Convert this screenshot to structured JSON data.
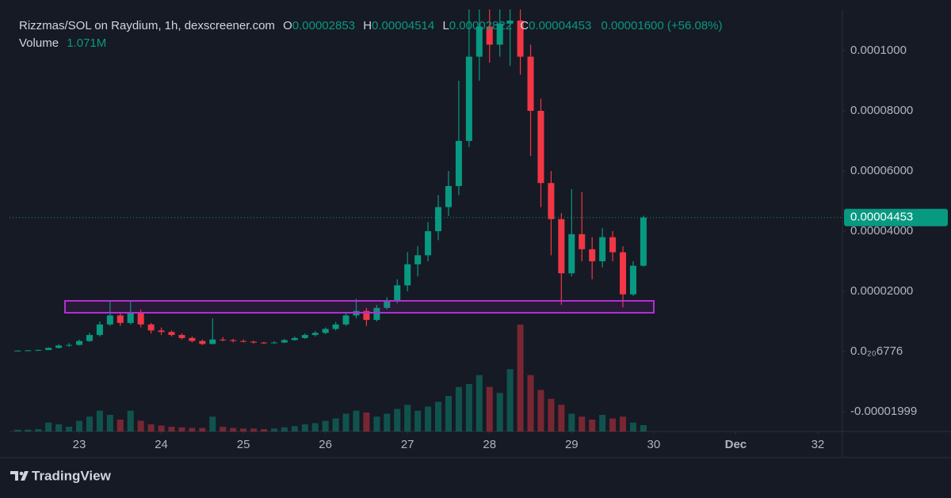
{
  "chart_data": {
    "type": "candlestick",
    "title": "Rizzmas/SOL on Raydium, 1h, dexscreener.com",
    "ohlc_labels": [
      "O",
      "H",
      "L",
      "C"
    ],
    "change_label": "0.00001600 (+56.08%)",
    "volume_title": "Volume",
    "volume_label": "1.071M",
    "up_color": "#089981",
    "down_color": "#f23645",
    "x": [
      22.25,
      22.375,
      22.5,
      22.625,
      22.75,
      22.875,
      23,
      23.125,
      23.25,
      23.375,
      23.5,
      23.625,
      23.75,
      23.875,
      24,
      24.125,
      24.25,
      24.375,
      24.5,
      24.625,
      24.75,
      24.875,
      25,
      25.125,
      25.25,
      25.375,
      25.5,
      25.625,
      25.75,
      25.875,
      26,
      26.125,
      26.25,
      26.375,
      26.5,
      26.625,
      26.75,
      26.875,
      27,
      27.125,
      27.25,
      27.375,
      27.5,
      27.625,
      27.75,
      27.875,
      28,
      28.125,
      28.25,
      28.375,
      28.5,
      28.625,
      28.75,
      28.875,
      29,
      29.125,
      29.25,
      29.375,
      29.5,
      29.625,
      29.75,
      29.875
    ],
    "open": [
      2e-07,
      3e-07,
      4e-07,
      5e-07,
      1.2e-06,
      2e-06,
      2.2e-06,
      3.5e-06,
      5.5e-06,
      9e-06,
      1.2e-05,
      9.5e-06,
      1.3e-05,
      9e-06,
      7e-06,
      6.5e-06,
      5.5e-06,
      4.5e-06,
      3.5e-06,
      2.5e-06,
      4e-06,
      3.8e-06,
      3.5e-06,
      3.3e-06,
      3e-06,
      2.8e-06,
      3e-06,
      3.8e-06,
      4.5e-06,
      5.5e-06,
      6.2e-06,
      7.5e-06,
      9e-06,
      1.2e-05,
      1.35e-05,
      1.05e-05,
      1.45e-05,
      1.7e-05,
      2.2e-05,
      2.9e-05,
      3.2e-05,
      4e-05,
      4.8e-05,
      5.5e-05,
      7e-05,
      9.8e-05,
      0.000108,
      0.000102,
      0.000109,
      0.00011,
      9.8e-05,
      8e-05,
      5.6e-05,
      4.4e-05,
      2.6e-05,
      3.9e-05,
      3.4e-05,
      3e-05,
      3.8e-05,
      3.3e-05,
      1.9e-05,
      2.853e-05
    ],
    "high": [
      4e-07,
      5e-07,
      7e-07,
      1.4e-06,
      2.4e-06,
      2.8e-06,
      4e-06,
      6.2e-06,
      1e-05,
      1.68e-05,
      1.3e-05,
      1.68e-05,
      1.4e-05,
      9.5e-06,
      8e-06,
      7e-06,
      6e-06,
      5e-06,
      4e-06,
      1.1e-05,
      4.8e-06,
      4.2e-06,
      4e-06,
      3.6e-06,
      3.2e-06,
      3.4e-06,
      4.2e-06,
      5e-06,
      6e-06,
      6.8e-06,
      8e-06,
      9.8e-06,
      1.3e-05,
      1.75e-05,
      1.45e-05,
      1.55e-05,
      1.8e-05,
      2.4e-05,
      3.3e-05,
      3.5e-05,
      4.3e-05,
      5.2e-05,
      6e-05,
      9e-05,
      0.000114,
      0.000114,
      0.000114,
      0.000114,
      0.000114,
      0.000114,
      0.000102,
      8.4e-05,
      6e-05,
      4.6e-05,
      5.4e-05,
      5.3e-05,
      3.8e-05,
      4.1e-05,
      4e-05,
      3.5e-05,
      3e-05,
      4.514e-05
    ],
    "low": [
      2e-07,
      3e-07,
      4e-07,
      5e-07,
      1e-06,
      1.6e-06,
      2e-06,
      3.2e-06,
      5e-06,
      8.5e-06,
      8.5e-06,
      9e-06,
      8e-06,
      6e-06,
      5.5e-06,
      5e-06,
      4e-06,
      3e-06,
      2.2e-06,
      2.4e-06,
      3.4e-06,
      3e-06,
      3e-06,
      2.6e-06,
      2.5e-06,
      2.6e-06,
      2.8e-06,
      3.6e-06,
      4.2e-06,
      5e-06,
      5.8e-06,
      7e-06,
      8.5e-06,
      1.1e-05,
      8.5e-06,
      1e-05,
      1.4e-05,
      1.6e-05,
      2e-05,
      2.5e-05,
      3e-05,
      3.7e-05,
      4.5e-05,
      5.2e-05,
      6.8e-05,
      9e-05,
      9.6e-05,
      9.8e-05,
      9.5e-05,
      9.2e-05,
      6.5e-05,
      4.8e-05,
      3.2e-05,
      1.55e-05,
      2.5e-05,
      3e-05,
      2.4e-05,
      2.8e-05,
      3e-05,
      1.47e-05,
      1.85e-05,
      2.822e-05
    ],
    "close": [
      3e-07,
      4e-07,
      5e-07,
      1.2e-06,
      2e-06,
      2.2e-06,
      3.5e-06,
      5.5e-06,
      9e-06,
      1.2e-05,
      9.5e-06,
      1.3e-05,
      9e-06,
      7e-06,
      6.5e-06,
      5.5e-06,
      4.5e-06,
      3.5e-06,
      2.5e-06,
      4e-06,
      3.8e-06,
      3.5e-06,
      3.3e-06,
      3e-06,
      2.8e-06,
      3e-06,
      3.8e-06,
      4.5e-06,
      5.5e-06,
      6.2e-06,
      7.5e-06,
      9e-06,
      1.2e-05,
      1.35e-05,
      1.05e-05,
      1.45e-05,
      1.7e-05,
      2.2e-05,
      2.9e-05,
      3.2e-05,
      4e-05,
      4.8e-05,
      5.5e-05,
      7e-05,
      9.8e-05,
      0.000108,
      0.000102,
      0.000109,
      0.00011,
      9.8e-05,
      8e-05,
      5.6e-05,
      4.4e-05,
      2.6e-05,
      3.9e-05,
      3.4e-05,
      3e-05,
      3.8e-05,
      3.3e-05,
      1.9e-05,
      2.85e-05,
      4.453e-05
    ],
    "volume": [
      300000,
      300000,
      400000,
      1500000,
      1200000,
      800000,
      1800000,
      2500000,
      3500000,
      2800000,
      2000000,
      3500000,
      1800000,
      1200000,
      1000000,
      800000,
      700000,
      600000,
      600000,
      2500000,
      800000,
      600000,
      500000,
      500000,
      400000,
      500000,
      700000,
      900000,
      1200000,
      1400000,
      1800000,
      2200000,
      3000000,
      3500000,
      3200000,
      2500000,
      3000000,
      3800000,
      4500000,
      3500000,
      4200000,
      5000000,
      6000000,
      7500000,
      8000000,
      9500000,
      7500000,
      6500000,
      10500000,
      18000000,
      9500000,
      7000000,
      5500000,
      4500000,
      3000000,
      2500000,
      2000000,
      2800000,
      2200000,
      2500000,
      1500000,
      1071000
    ],
    "xlim": [
      22.15,
      32.3
    ],
    "xticks": [
      23,
      24,
      25,
      26,
      27,
      28,
      29,
      30,
      {
        "value": 31,
        "label": "Dec"
      },
      32
    ],
    "ylim": [
      -2.658e-05,
      0.00011368
    ],
    "yticks": [
      {
        "value": 0.0001,
        "label": "0.0001000"
      },
      {
        "value": 8e-05,
        "label": "0.00008000"
      },
      {
        "value": 6e-05,
        "label": "0.00006000"
      },
      {
        "value": 4e-05,
        "label": "0.00004000"
      },
      {
        "value": 2e-05,
        "label": "0.00002000"
      },
      {
        "value": 6.776e-21,
        "label": "0.0₂₀6776"
      },
      {
        "value": -1.999e-05,
        "label": "-0.00001999"
      }
    ]
  },
  "branding": "TradingView"
}
